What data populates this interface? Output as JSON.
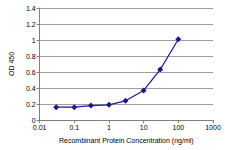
{
  "chart_data": {
    "type": "line",
    "x": [
      0.03,
      0.1,
      0.3,
      1,
      3,
      10,
      30,
      100
    ],
    "values": [
      0.16,
      0.16,
      0.18,
      0.19,
      0.24,
      0.37,
      0.63,
      1.01
    ],
    "color": "#1a1a8c",
    "marker": "diamond",
    "xlabel": "Recombinant Protein Concentration (ng/ml)",
    "ylabel": "OD 450",
    "log": "x",
    "xlim": [
      0.01,
      1000
    ],
    "xticks": [
      0.01,
      0.1,
      1,
      10,
      100,
      1000
    ],
    "ylim": [
      0,
      1.4
    ],
    "yticks": [
      0,
      0.2,
      0.4,
      0.6,
      0.8,
      1,
      1.2,
      1.4
    ],
    "grid": true
  }
}
